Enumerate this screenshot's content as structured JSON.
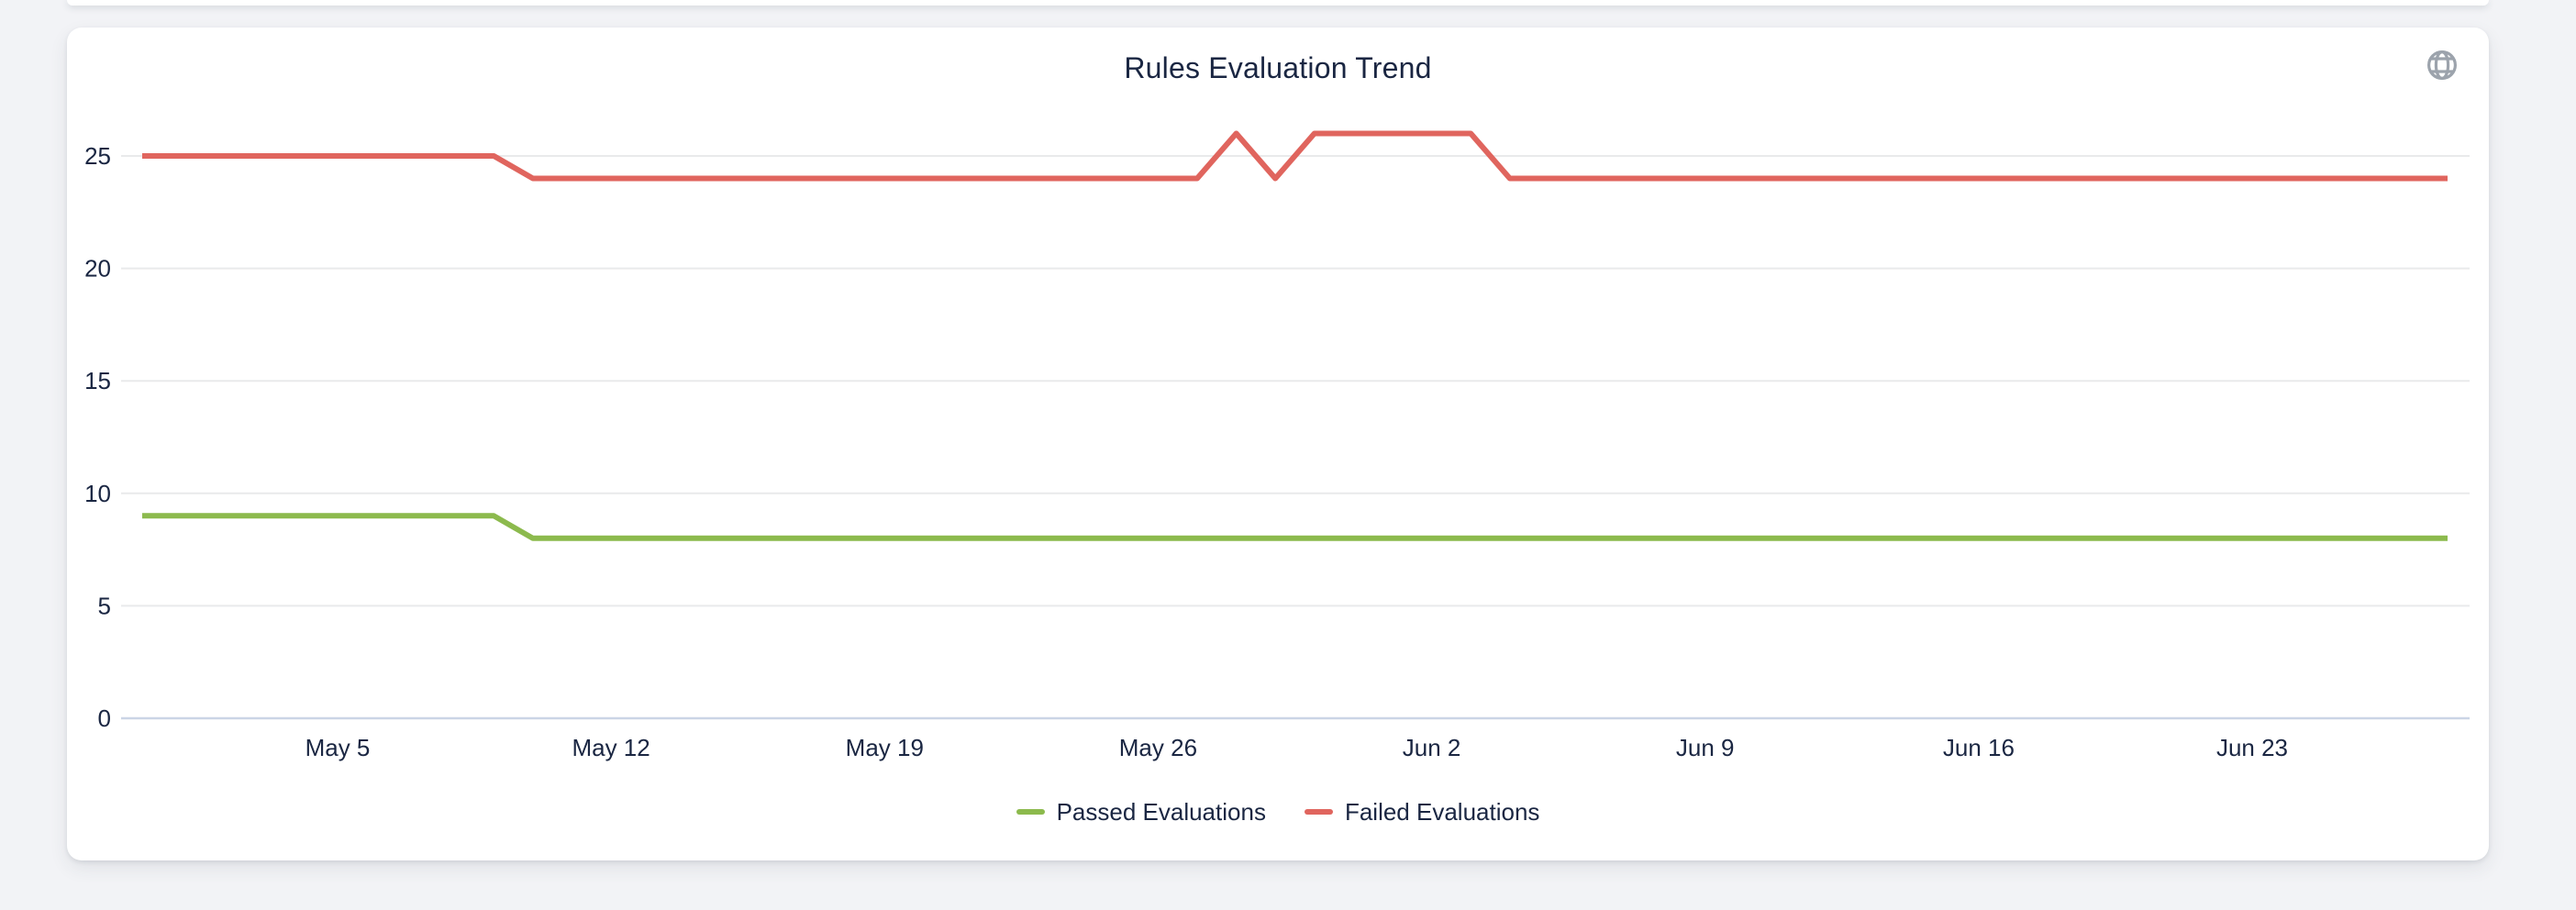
{
  "card": {
    "title": "Rules Evaluation Trend",
    "icons": {
      "top_right": "globe-icon"
    }
  },
  "chart_data": {
    "type": "line",
    "title": "Rules Evaluation Trend",
    "x": [
      "Apr 30",
      "May 1",
      "May 2",
      "May 3",
      "May 4",
      "May 5",
      "May 6",
      "May 7",
      "May 8",
      "May 9",
      "May 10",
      "May 11",
      "May 12",
      "May 13",
      "May 14",
      "May 15",
      "May 16",
      "May 17",
      "May 18",
      "May 19",
      "May 20",
      "May 21",
      "May 22",
      "May 23",
      "May 24",
      "May 25",
      "May 26",
      "May 27",
      "May 28",
      "May 29",
      "May 30",
      "May 31",
      "Jun 1",
      "Jun 2",
      "Jun 3",
      "Jun 4",
      "Jun 5",
      "Jun 6",
      "Jun 7",
      "Jun 8",
      "Jun 9",
      "Jun 10",
      "Jun 11",
      "Jun 12",
      "Jun 13",
      "Jun 14",
      "Jun 15",
      "Jun 16",
      "Jun 17",
      "Jun 18",
      "Jun 19",
      "Jun 20",
      "Jun 21",
      "Jun 22",
      "Jun 23",
      "Jun 24",
      "Jun 25",
      "Jun 26",
      "Jun 27",
      "Jun 28"
    ],
    "x_tick_labels": [
      "May 5",
      "May 12",
      "May 19",
      "May 26",
      "Jun 2",
      "Jun 9",
      "Jun 16",
      "Jun 23"
    ],
    "yticks": [
      0,
      5,
      10,
      15,
      20,
      25
    ],
    "ylim": [
      0,
      26
    ],
    "grid": true,
    "legend_position": "bottom",
    "colors": {
      "grid": "#e9eaeb",
      "axis_line": "#cbd5e6",
      "text": "#1a2642",
      "icon": "#9ca3ac"
    },
    "series": [
      {
        "name": "Passed Evaluations",
        "color": "#8cba4d",
        "values": [
          9,
          9,
          9,
          9,
          9,
          9,
          9,
          9,
          9,
          9,
          8,
          8,
          8,
          8,
          8,
          8,
          8,
          8,
          8,
          8,
          8,
          8,
          8,
          8,
          8,
          8,
          8,
          8,
          8,
          8,
          8,
          8,
          8,
          8,
          8,
          8,
          8,
          8,
          8,
          8,
          8,
          8,
          8,
          8,
          8,
          8,
          8,
          8,
          8,
          8,
          8,
          8,
          8,
          8,
          8,
          8,
          8,
          8,
          8,
          8
        ]
      },
      {
        "name": "Failed Evaluations",
        "color": "#e0655e",
        "values": [
          25,
          25,
          25,
          25,
          25,
          25,
          25,
          25,
          25,
          25,
          24,
          24,
          24,
          24,
          24,
          24,
          24,
          24,
          24,
          24,
          24,
          24,
          24,
          24,
          24,
          24,
          24,
          24,
          26,
          24,
          26,
          26,
          26,
          26,
          26,
          24,
          24,
          24,
          24,
          24,
          24,
          24,
          24,
          24,
          24,
          24,
          24,
          24,
          24,
          24,
          24,
          24,
          24,
          24,
          24,
          24,
          24,
          24,
          24,
          24
        ]
      }
    ]
  }
}
